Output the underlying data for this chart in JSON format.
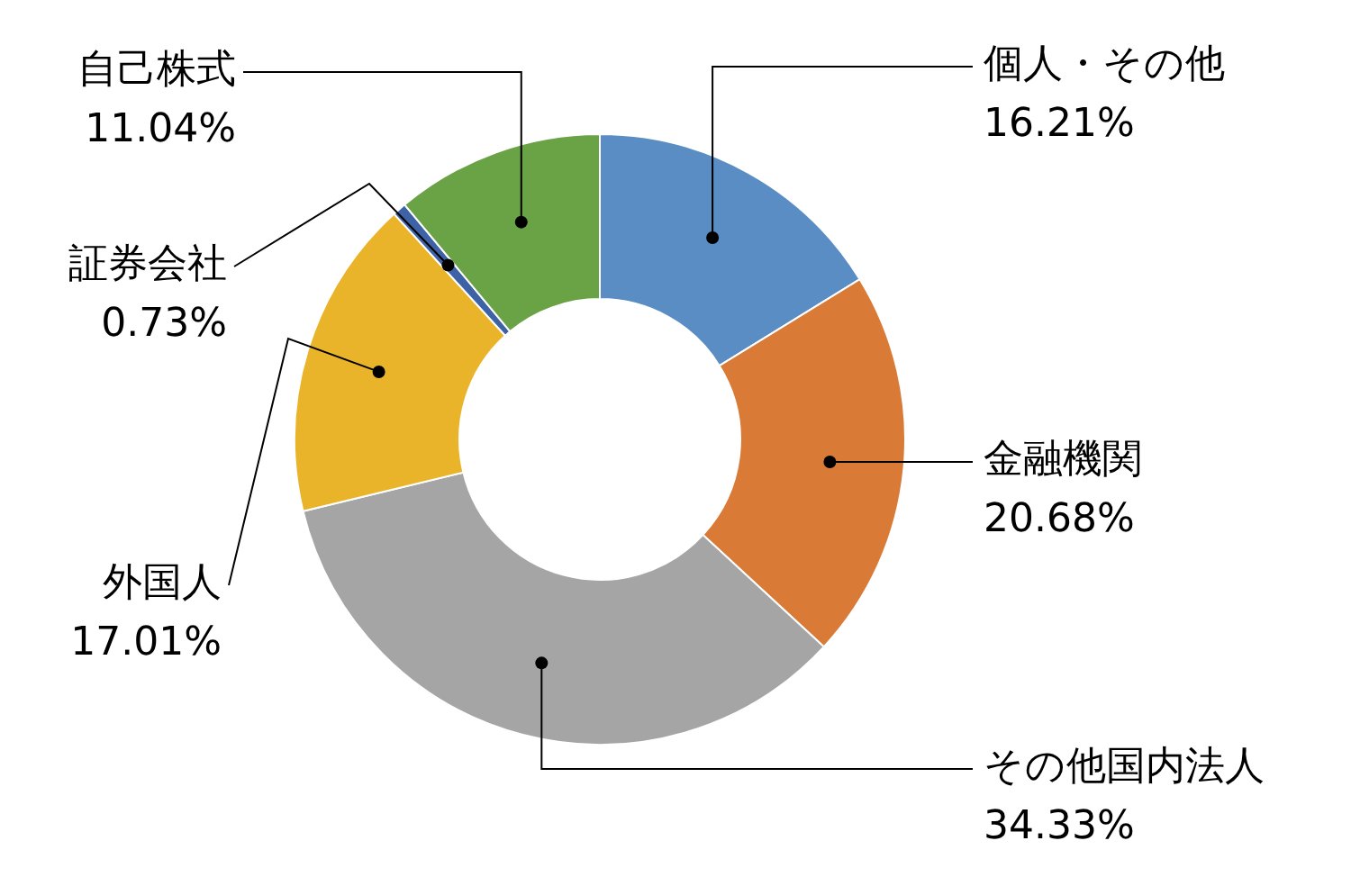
{
  "chart_data": {
    "type": "donut",
    "categories": [
      "個人・その他",
      "金融機関",
      "その他国内法人",
      "外国人",
      "証券会社",
      "自己株式"
    ],
    "values": [
      16.21,
      20.68,
      34.33,
      17.01,
      0.73,
      11.04
    ],
    "colors": [
      "#5a8dc3",
      "#d97a36",
      "#a5a5a5",
      "#eab42a",
      "#3d62a6",
      "#6aa246"
    ],
    "value_labels": [
      "16.21%",
      "20.68%",
      "34.33%",
      "17.01%",
      "0.73%",
      "11.04%"
    ],
    "legend": false
  }
}
